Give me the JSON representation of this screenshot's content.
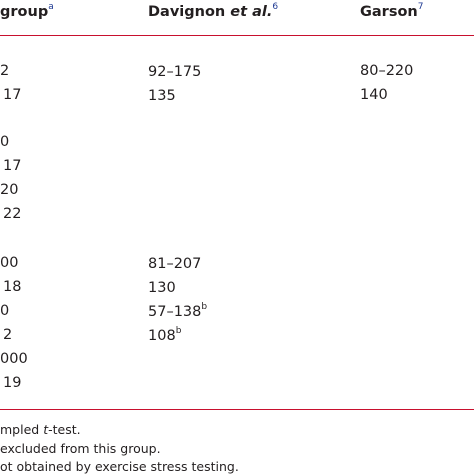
{
  "headers": {
    "col1": {
      "text": "group",
      "sup": "a"
    },
    "col2": {
      "text": "Davignon ",
      "italic": "et al.",
      "sup": "6"
    },
    "col3": {
      "text": "Garson",
      "sup": "7"
    }
  },
  "col1": [
    "2",
    "17",
    "0",
    "17",
    "20",
    "22",
    "00",
    "18",
    "0",
    "2",
    "000",
    "19"
  ],
  "col2": [
    {
      "text": "92–175",
      "sup": ""
    },
    {
      "text": "135",
      "sup": ""
    },
    {
      "text": "81–207",
      "sup": ""
    },
    {
      "text": "130",
      "sup": ""
    },
    {
      "text": "57–138",
      "sup": "b"
    },
    {
      "text": "108",
      "sup": "b"
    }
  ],
  "col3": [
    "80–220",
    "140"
  ],
  "notes": [
    {
      "text": "mpled ",
      "italic": "t",
      "tail": "-test."
    },
    {
      "text": "excluded from this group.",
      "italic": "",
      "tail": ""
    },
    {
      "text": "ot obtained by exercise stress testing.",
      "italic": "",
      "tail": ""
    }
  ]
}
